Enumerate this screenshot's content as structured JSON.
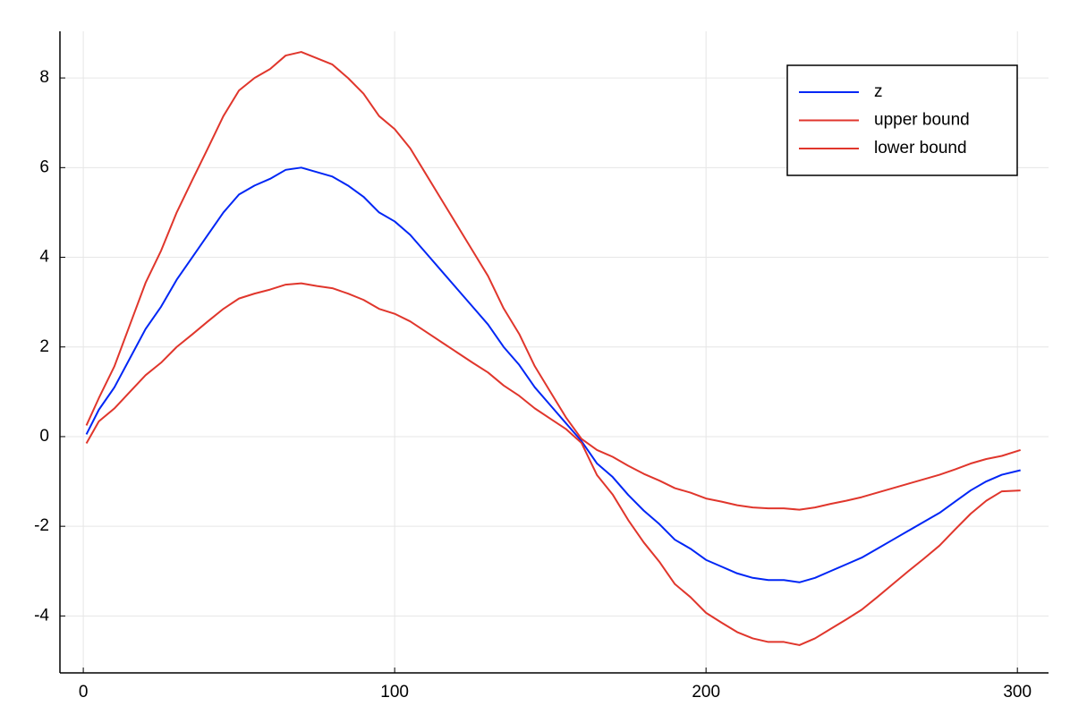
{
  "chart_data": {
    "type": "line",
    "x": [
      1,
      5,
      10,
      15,
      20,
      25,
      30,
      35,
      40,
      45,
      50,
      55,
      60,
      65,
      70,
      75,
      80,
      85,
      90,
      95,
      100,
      105,
      110,
      115,
      120,
      125,
      130,
      135,
      140,
      145,
      150,
      155,
      160,
      165,
      170,
      175,
      180,
      185,
      190,
      195,
      200,
      205,
      210,
      215,
      220,
      225,
      230,
      235,
      240,
      245,
      250,
      255,
      260,
      265,
      270,
      275,
      280,
      285,
      290,
      295,
      301
    ],
    "series": [
      {
        "name": "z",
        "color": "#0026f5",
        "values": [
          0.05,
          0.6,
          1.1,
          1.75,
          2.4,
          2.9,
          3.5,
          4.0,
          4.5,
          5.0,
          5.4,
          5.6,
          5.75,
          5.95,
          6.0,
          5.9,
          5.8,
          5.6,
          5.35,
          5.0,
          4.8,
          4.5,
          4.1,
          3.7,
          3.3,
          2.9,
          2.5,
          2.0,
          1.6,
          1.1,
          0.7,
          0.3,
          -0.1,
          -0.6,
          -0.9,
          -1.3,
          -1.65,
          -1.95,
          -2.3,
          -2.5,
          -2.75,
          -2.9,
          -3.05,
          -3.15,
          -3.2,
          -3.2,
          -3.25,
          -3.15,
          -3.0,
          -2.85,
          -2.7,
          -2.5,
          -2.3,
          -2.1,
          -1.9,
          -1.7,
          -1.45,
          -1.2,
          -1.0,
          -0.85,
          -0.75
        ]
      },
      {
        "name": "upper bound",
        "color": "#e0362c",
        "values": [
          0.25,
          0.86,
          1.57,
          2.5,
          3.43,
          4.15,
          5.0,
          5.72,
          6.43,
          7.15,
          7.72,
          8.0,
          8.2,
          8.5,
          8.58,
          8.44,
          8.3,
          8.0,
          7.65,
          7.15,
          6.86,
          6.43,
          5.86,
          5.29,
          4.72,
          4.15,
          3.58,
          2.86,
          2.29,
          1.57,
          1.0,
          0.43,
          -0.05,
          -0.3,
          -0.45,
          -0.65,
          -0.83,
          -0.98,
          -1.15,
          -1.25,
          -1.38,
          -1.45,
          -1.53,
          -1.58,
          -1.6,
          -1.6,
          -1.63,
          -1.58,
          -1.5,
          -1.43,
          -1.35,
          -1.25,
          -1.15,
          -1.05,
          -0.95,
          -0.85,
          -0.73,
          -0.6,
          -0.5,
          -0.43,
          -0.3
        ]
      },
      {
        "name": "lower bound",
        "color": "#e0362c",
        "values": [
          -0.15,
          0.34,
          0.63,
          1.0,
          1.37,
          1.65,
          2.0,
          2.28,
          2.57,
          2.85,
          3.08,
          3.19,
          3.28,
          3.39,
          3.42,
          3.36,
          3.31,
          3.19,
          3.05,
          2.85,
          2.74,
          2.57,
          2.34,
          2.11,
          1.88,
          1.65,
          1.43,
          1.14,
          0.91,
          0.63,
          0.4,
          0.17,
          -0.14,
          -0.86,
          -1.29,
          -1.86,
          -2.36,
          -2.79,
          -3.29,
          -3.58,
          -3.93,
          -4.15,
          -4.36,
          -4.5,
          -4.58,
          -4.58,
          -4.65,
          -4.5,
          -4.29,
          -4.08,
          -3.86,
          -3.58,
          -3.29,
          -3.0,
          -2.72,
          -2.43,
          -2.07,
          -1.72,
          -1.43,
          -1.22,
          -1.2
        ]
      }
    ],
    "xlim": [
      -7.5,
      310
    ],
    "xticks": [
      0,
      100,
      200,
      300
    ],
    "ylim": [
      -5.27,
      9.04
    ],
    "yticks": [
      -4,
      -2,
      0,
      2,
      4,
      6,
      8
    ],
    "grid": true,
    "legend": "top-right"
  }
}
